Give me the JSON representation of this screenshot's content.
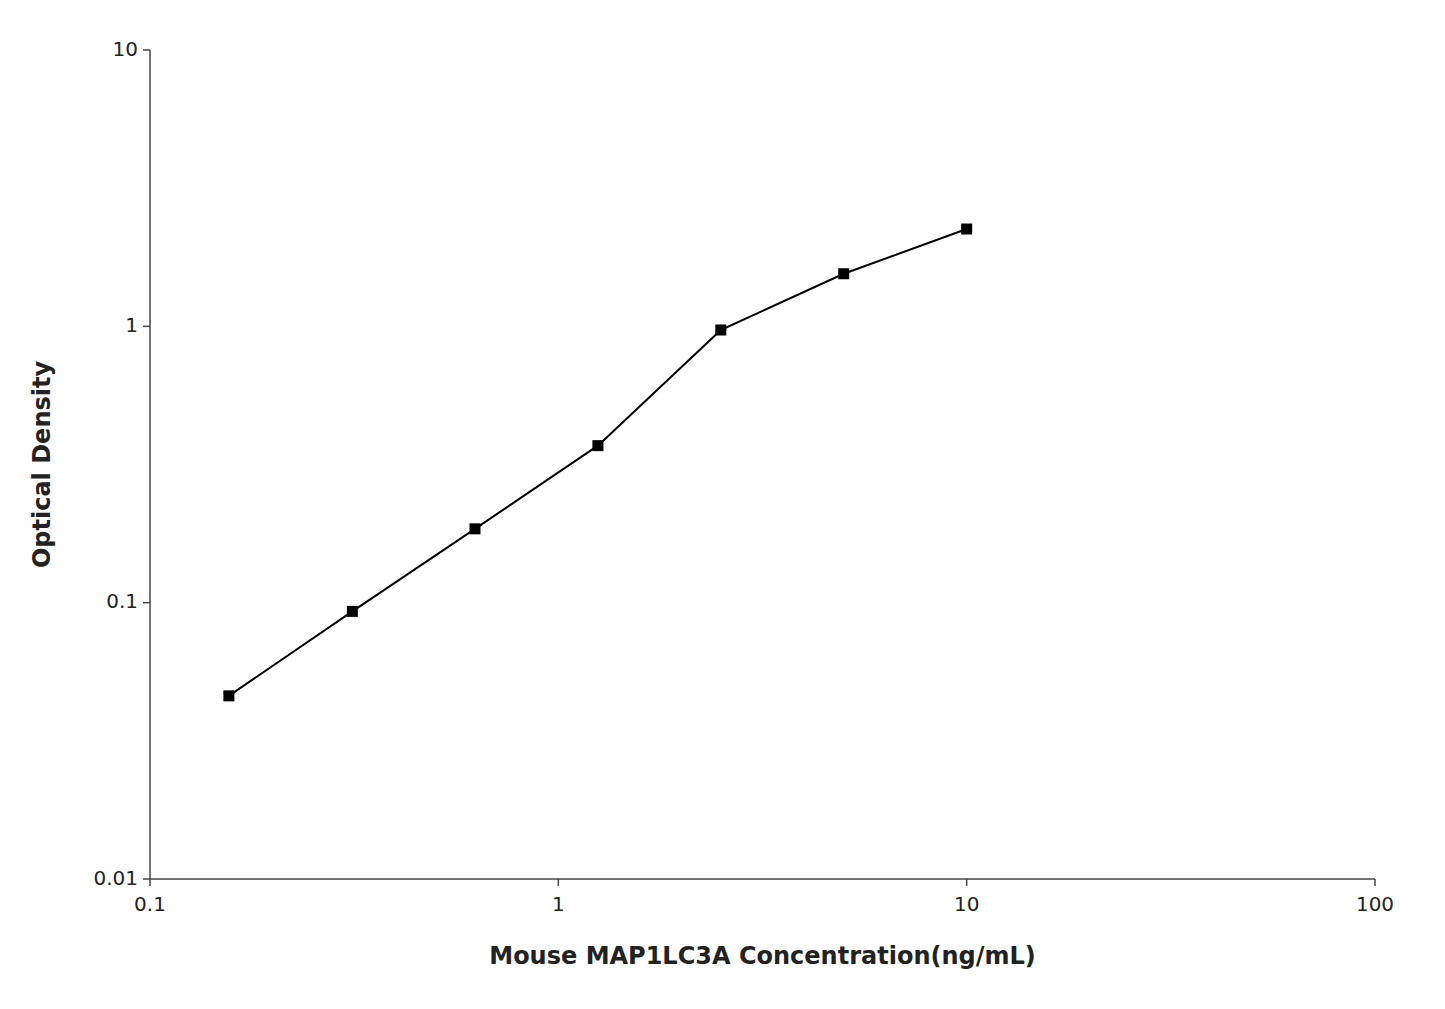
{
  "chart_data": {
    "type": "line",
    "x": [
      0.156,
      0.313,
      0.625,
      1.25,
      2.5,
      5.0,
      10.0
    ],
    "values": [
      0.046,
      0.093,
      0.185,
      0.37,
      0.97,
      1.55,
      2.25
    ],
    "xlabel": "Mouse MAP1LC3A Concentration(ng/mL)",
    "ylabel": "Optical Density",
    "xlim": [
      0.1,
      100
    ],
    "ylim": [
      0.01,
      10
    ],
    "xticks": [
      0.1,
      1,
      10,
      100
    ],
    "yticks": [
      0.01,
      0.1,
      1,
      10
    ],
    "log": true,
    "grid": false,
    "color": "#000000",
    "marker": "square",
    "line_style": "solid"
  }
}
